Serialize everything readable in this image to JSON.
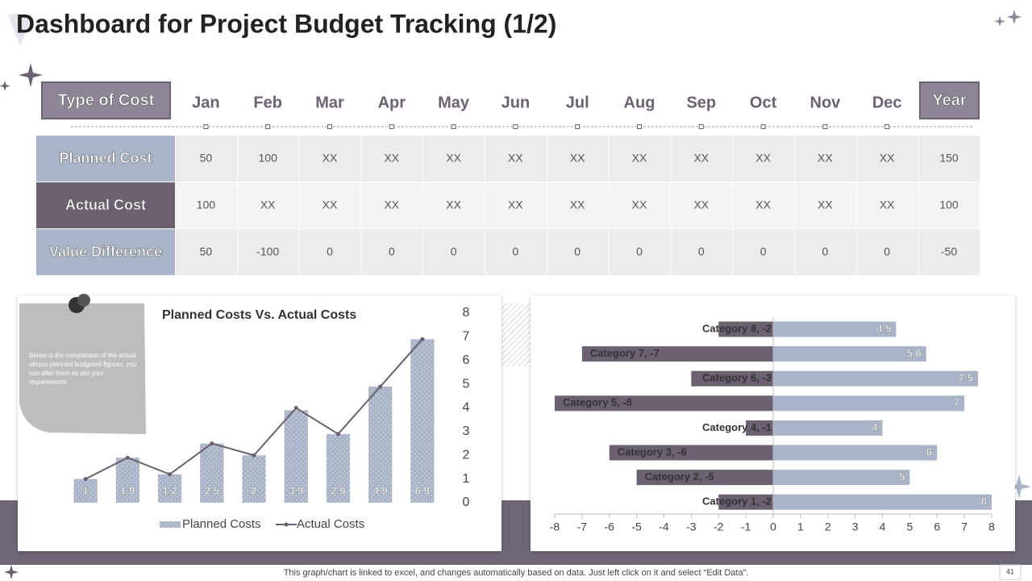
{
  "title": "Dashboard for Project Budget Tracking (1/2)",
  "table": {
    "header": [
      "Type of Cost",
      "Jan",
      "Feb",
      "Mar",
      "Apr",
      "May",
      "Jun",
      "Jul",
      "Aug",
      "Sep",
      "Oct",
      "Nov",
      "Dec",
      "Year"
    ],
    "rows": [
      [
        "Planned Cost",
        "50",
        "100",
        "XX",
        "XX",
        "XX",
        "XX",
        "XX",
        "XX",
        "XX",
        "XX",
        "XX",
        "XX",
        "150"
      ],
      [
        "Actual Cost",
        "100",
        "XX",
        "XX",
        "XX",
        "XX",
        "XX",
        "XX",
        "XX",
        "XX",
        "XX",
        "XX",
        "XX",
        "100"
      ],
      [
        "Value Difference",
        "50",
        "-100",
        "0",
        "0",
        "0",
        "0",
        "0",
        "0",
        "0",
        "0",
        "0",
        "0",
        "-50"
      ]
    ]
  },
  "chart_data": [
    {
      "type": "bar",
      "title": "Planned Costs Vs. Actual Costs",
      "categories": [
        null,
        null,
        null,
        null,
        null,
        null,
        null,
        null,
        null
      ],
      "series": [
        {
          "name": "Planned Costs",
          "type": "bar",
          "color": "#a9b4c8",
          "values": [
            1,
            1.9,
            1.2,
            2.5,
            2,
            3.9,
            2.9,
            4.9,
            6.9
          ]
        },
        {
          "name": "Actual Costs",
          "type": "line",
          "color": "#6b6170",
          "values": [
            1,
            1.9,
            1.2,
            2.5,
            2,
            4,
            2.9,
            4.9,
            6.9
          ]
        }
      ],
      "ylim": [
        0,
        8
      ],
      "yticks": [
        0,
        1,
        2,
        3,
        4,
        5,
        6,
        7,
        8
      ],
      "legend": "bottom",
      "data_labels": true
    },
    {
      "type": "diverging_bar",
      "orientation": "horizontal",
      "series": [
        {
          "color": "#6b6170",
          "values": [
            -2,
            -5,
            -6,
            -1,
            -8,
            -3,
            -7,
            -2
          ],
          "value_labels": [
            "Category 1, -2",
            "Category 2, -5",
            "Category 3, -6",
            "Category 4, -1",
            "Category 5, -8",
            "Category 6, -3",
            "Category 7, -7",
            "Category 8, -2"
          ]
        },
        {
          "color": "#a9b4c8",
          "values": [
            8,
            5,
            6,
            4,
            7,
            7.5,
            5.6,
            4.5
          ]
        }
      ],
      "xlim": [
        -8,
        8
      ],
      "xticks": [
        -8,
        -7,
        -6,
        -5,
        -4,
        -3,
        -2,
        -1,
        0,
        1,
        2,
        3,
        4,
        5,
        6,
        7,
        8
      ]
    }
  ],
  "note": "Below is the comparison of the actual versus planned budgeted figures, you can alter them as per your requirements",
  "footer": "This graph/chart is linked to excel, and changes automatically based on data. Just left click on it and select “Edit Data”.",
  "page_number": "41"
}
